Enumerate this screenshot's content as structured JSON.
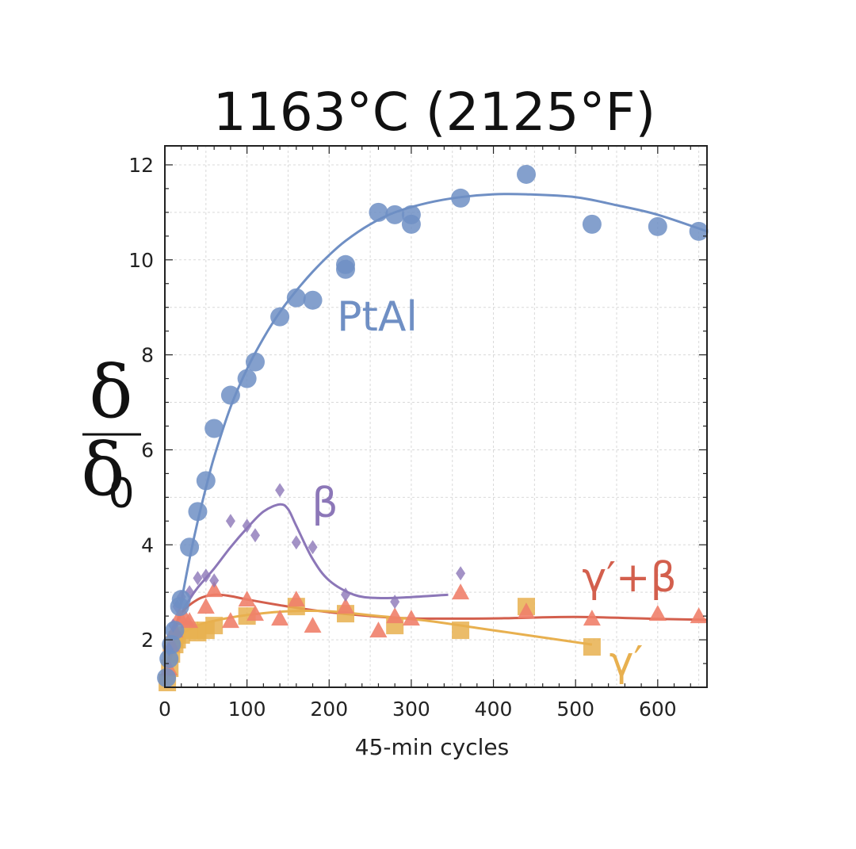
{
  "chart_data": {
    "type": "scatter",
    "title": "1163°C (2125°F)",
    "xlabel": "45-min cycles",
    "ylabel": "δ",
    "ylabel_denominator": "δ",
    "ylabel_subscript": "0",
    "xlim": [
      0,
      660
    ],
    "ylim": [
      1,
      12.4
    ],
    "xticks": [
      0,
      100,
      200,
      300,
      400,
      500,
      600
    ],
    "yticks": [
      2,
      4,
      6,
      8,
      10,
      12
    ],
    "grid": true,
    "series": [
      {
        "name": "PtAl",
        "color": "#6f8fc4",
        "marker": "circle",
        "points": [
          [
            2,
            1.2
          ],
          [
            5,
            1.6
          ],
          [
            8,
            1.9
          ],
          [
            12,
            2.2
          ],
          [
            18,
            2.7
          ],
          [
            20,
            2.85
          ],
          [
            30,
            3.95
          ],
          [
            40,
            4.7
          ],
          [
            50,
            5.35
          ],
          [
            60,
            6.45
          ],
          [
            80,
            7.15
          ],
          [
            100,
            7.5
          ],
          [
            110,
            7.85
          ],
          [
            140,
            8.8
          ],
          [
            160,
            9.2
          ],
          [
            180,
            9.15
          ],
          [
            220,
            9.8
          ],
          [
            220,
            9.9
          ],
          [
            260,
            11.0
          ],
          [
            280,
            10.95
          ],
          [
            300,
            10.75
          ],
          [
            300,
            10.95
          ],
          [
            360,
            11.3
          ],
          [
            440,
            11.8
          ],
          [
            520,
            10.75
          ],
          [
            600,
            10.7
          ],
          [
            650,
            10.6
          ]
        ],
        "curve": [
          [
            0,
            1.0
          ],
          [
            10,
            1.9
          ],
          [
            20,
            2.8
          ],
          [
            30,
            3.7
          ],
          [
            40,
            4.5
          ],
          [
            50,
            5.2
          ],
          [
            60,
            5.85
          ],
          [
            80,
            6.9
          ],
          [
            100,
            7.7
          ],
          [
            120,
            8.35
          ],
          [
            140,
            8.9
          ],
          [
            160,
            9.35
          ],
          [
            180,
            9.75
          ],
          [
            200,
            10.1
          ],
          [
            220,
            10.4
          ],
          [
            250,
            10.75
          ],
          [
            280,
            11.0
          ],
          [
            320,
            11.2
          ],
          [
            360,
            11.32
          ],
          [
            400,
            11.38
          ],
          [
            440,
            11.38
          ],
          [
            500,
            11.32
          ],
          [
            550,
            11.15
          ],
          [
            600,
            10.95
          ],
          [
            660,
            10.6
          ]
        ]
      },
      {
        "name": "β",
        "color": "#8c77b8",
        "marker": "diamond",
        "points": [
          [
            5,
            1.8
          ],
          [
            10,
            2.3
          ],
          [
            15,
            2.7
          ],
          [
            20,
            2.9
          ],
          [
            30,
            3.0
          ],
          [
            40,
            3.3
          ],
          [
            50,
            3.35
          ],
          [
            60,
            3.25
          ],
          [
            80,
            4.5
          ],
          [
            100,
            4.4
          ],
          [
            110,
            4.2
          ],
          [
            140,
            5.15
          ],
          [
            160,
            4.05
          ],
          [
            180,
            3.95
          ],
          [
            220,
            2.95
          ],
          [
            280,
            2.8
          ],
          [
            360,
            3.4
          ]
        ],
        "curve": [
          [
            0,
            1.1
          ],
          [
            10,
            2.0
          ],
          [
            20,
            2.55
          ],
          [
            30,
            2.85
          ],
          [
            40,
            3.1
          ],
          [
            60,
            3.5
          ],
          [
            80,
            3.95
          ],
          [
            100,
            4.35
          ],
          [
            120,
            4.7
          ],
          [
            140,
            4.85
          ],
          [
            150,
            4.75
          ],
          [
            160,
            4.4
          ],
          [
            180,
            3.7
          ],
          [
            200,
            3.25
          ],
          [
            230,
            2.95
          ],
          [
            260,
            2.88
          ],
          [
            300,
            2.9
          ],
          [
            345,
            2.95
          ]
        ]
      },
      {
        "name": "γ′+β",
        "color": "#d35f4d",
        "marker": "triangle",
        "points": [
          [
            5,
            1.4
          ],
          [
            8,
            1.9
          ],
          [
            12,
            2.2
          ],
          [
            18,
            2.5
          ],
          [
            25,
            2.45
          ],
          [
            30,
            2.4
          ],
          [
            50,
            2.7
          ],
          [
            60,
            3.05
          ],
          [
            80,
            2.4
          ],
          [
            100,
            2.85
          ],
          [
            110,
            2.55
          ],
          [
            140,
            2.45
          ],
          [
            160,
            2.85
          ],
          [
            180,
            2.3
          ],
          [
            220,
            2.7
          ],
          [
            260,
            2.2
          ],
          [
            280,
            2.5
          ],
          [
            300,
            2.45
          ],
          [
            360,
            3.0
          ],
          [
            440,
            2.6
          ],
          [
            520,
            2.45
          ],
          [
            600,
            2.55
          ],
          [
            650,
            2.5
          ]
        ],
        "curve": [
          [
            0,
            1.1
          ],
          [
            10,
            2.1
          ],
          [
            20,
            2.55
          ],
          [
            40,
            2.85
          ],
          [
            60,
            2.95
          ],
          [
            80,
            2.92
          ],
          [
            100,
            2.85
          ],
          [
            150,
            2.7
          ],
          [
            200,
            2.58
          ],
          [
            250,
            2.5
          ],
          [
            300,
            2.45
          ],
          [
            400,
            2.45
          ],
          [
            500,
            2.48
          ],
          [
            600,
            2.44
          ],
          [
            660,
            2.42
          ]
        ]
      },
      {
        "name": "γ′",
        "color": "#e8b04f",
        "marker": "square",
        "points": [
          [
            3,
            1.1
          ],
          [
            6,
            1.4
          ],
          [
            8,
            1.7
          ],
          [
            12,
            1.9
          ],
          [
            15,
            2.0
          ],
          [
            20,
            2.1
          ],
          [
            30,
            2.2
          ],
          [
            40,
            2.15
          ],
          [
            50,
            2.2
          ],
          [
            60,
            2.3
          ],
          [
            100,
            2.5
          ],
          [
            160,
            2.7
          ],
          [
            220,
            2.55
          ],
          [
            280,
            2.3
          ],
          [
            360,
            2.2
          ],
          [
            440,
            2.7
          ],
          [
            520,
            1.85
          ]
        ],
        "curve": [
          [
            0,
            1.0
          ],
          [
            10,
            1.8
          ],
          [
            20,
            2.1
          ],
          [
            40,
            2.3
          ],
          [
            60,
            2.4
          ],
          [
            100,
            2.52
          ],
          [
            150,
            2.6
          ],
          [
            200,
            2.6
          ],
          [
            260,
            2.5
          ],
          [
            320,
            2.4
          ],
          [
            380,
            2.25
          ],
          [
            440,
            2.1
          ],
          [
            520,
            1.9
          ]
        ]
      }
    ],
    "annotations": [
      "PtAl",
      "β",
      "γ′+β",
      "γ′"
    ]
  }
}
